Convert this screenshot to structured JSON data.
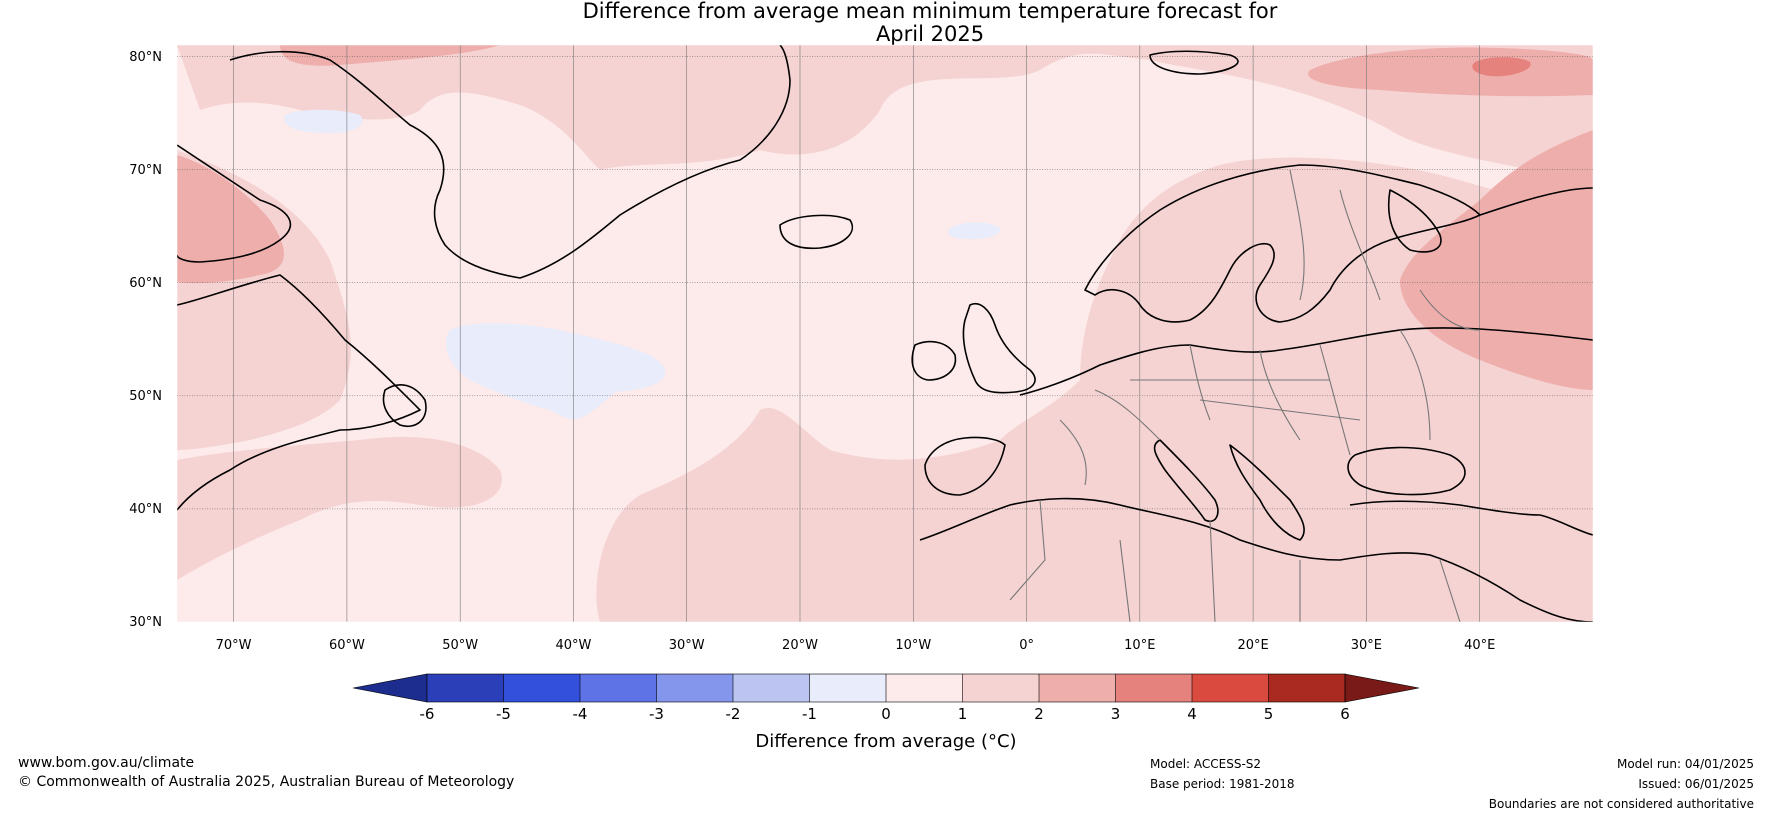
{
  "title": {
    "line1": "Difference from average mean minimum temperature forecast for",
    "line2": "April 2025"
  },
  "map": {
    "lat_labels": [
      "80°N",
      "70°N",
      "60°N",
      "50°N",
      "40°N",
      "30°N"
    ],
    "lon_labels": [
      "70°W",
      "60°W",
      "50°W",
      "40°W",
      "30°W",
      "20°W",
      "10°W",
      "0°",
      "10°E",
      "20°E",
      "30°E",
      "40°E"
    ],
    "extent": {
      "lon": [
        -75,
        50
      ],
      "lat": [
        30,
        81
      ]
    }
  },
  "colorbar": {
    "label": "Difference from average (°C)",
    "ticks": [
      "-6",
      "-5",
      "-4",
      "-3",
      "-2",
      "-1",
      "0",
      "1",
      "2",
      "3",
      "4",
      "5",
      "6"
    ],
    "colors": [
      "#1c2c8f",
      "#2a3fb8",
      "#3350dc",
      "#5e74e6",
      "#8396ec",
      "#bcc5f2",
      "#e8ecfb",
      "#fdeaea",
      "#f5d3d2",
      "#eeaeac",
      "#e6827d",
      "#db4a3f",
      "#aa2a22",
      "#7a1a18"
    ]
  },
  "footer": {
    "url": "www.bom.gov.au/climate",
    "copyright": "© Commonwealth of Australia 2025, Australian Bureau of Meteorology",
    "model": "Model: ACCESS-S2",
    "base_period": "Base period: 1981-2018",
    "model_run": "Model run: 04/01/2025",
    "issued": "Issued: 06/01/2025",
    "disclaimer": "Boundaries are not considered authoritative"
  }
}
